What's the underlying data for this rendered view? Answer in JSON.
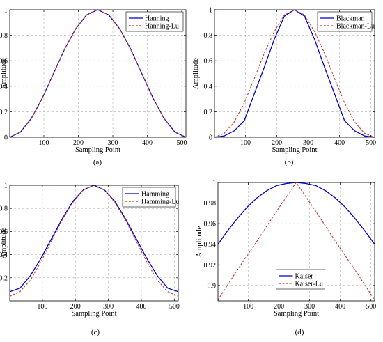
{
  "chart_data": [
    {
      "type": "line",
      "caption": "(a)",
      "xlabel": "Sampling Point",
      "ylabel": "Amplitude",
      "xlim": [
        1,
        512
      ],
      "ylim": [
        0,
        1
      ],
      "xticks": [
        100,
        200,
        300,
        400,
        500
      ],
      "yticks": [
        0,
        0.2,
        0.4,
        0.6,
        0.8,
        1
      ],
      "ytick_labels": [
        "0",
        "0.2",
        "0.4",
        "0.6",
        "0.8",
        "1"
      ],
      "grid": true,
      "legend": "top-right",
      "series": [
        {
          "name": "Hanning",
          "color": "#0000cc",
          "style": "solid",
          "x": [
            1,
            32,
            64,
            96,
            128,
            160,
            192,
            224,
            256,
            288,
            320,
            352,
            384,
            416,
            448,
            480,
            512
          ],
          "y": [
            0.0,
            0.04,
            0.15,
            0.31,
            0.5,
            0.69,
            0.85,
            0.96,
            1.0,
            0.96,
            0.85,
            0.69,
            0.5,
            0.31,
            0.15,
            0.04,
            0.0
          ]
        },
        {
          "name": "Hanning-Lu",
          "color": "#c0392b",
          "style": "dashed",
          "x": [
            1,
            32,
            64,
            96,
            128,
            160,
            192,
            224,
            256,
            288,
            320,
            352,
            384,
            416,
            448,
            480,
            512
          ],
          "y": [
            0.0,
            0.04,
            0.15,
            0.31,
            0.5,
            0.69,
            0.85,
            0.96,
            1.0,
            0.96,
            0.85,
            0.69,
            0.5,
            0.31,
            0.15,
            0.04,
            0.0
          ]
        }
      ]
    },
    {
      "type": "line",
      "caption": "(b)",
      "xlabel": "Sampling Point",
      "ylabel": "Amplitude",
      "xlim": [
        1,
        512
      ],
      "ylim": [
        0,
        1
      ],
      "xticks": [
        100,
        200,
        300,
        400,
        500
      ],
      "yticks": [
        0,
        0.2,
        0.4,
        0.6,
        0.8,
        1
      ],
      "ytick_labels": [
        "0",
        "0.2",
        "0.4",
        "0.6",
        "0.8",
        "1"
      ],
      "grid": true,
      "legend": "top-right",
      "series": [
        {
          "name": "Blackman",
          "color": "#0000cc",
          "style": "solid",
          "x": [
            1,
            32,
            64,
            96,
            128,
            160,
            192,
            224,
            256,
            288,
            320,
            352,
            384,
            416,
            448,
            480,
            512
          ],
          "y": [
            0.0,
            0.01,
            0.05,
            0.13,
            0.34,
            0.55,
            0.77,
            0.95,
            1.0,
            0.95,
            0.77,
            0.55,
            0.34,
            0.13,
            0.05,
            0.01,
            0.0
          ]
        },
        {
          "name": "Blackman-Lu",
          "color": "#c0392b",
          "style": "dashed",
          "x": [
            1,
            32,
            64,
            96,
            128,
            160,
            192,
            224,
            256,
            288,
            320,
            352,
            384,
            416,
            448,
            480,
            512
          ],
          "y": [
            0.0,
            0.03,
            0.12,
            0.27,
            0.46,
            0.66,
            0.83,
            0.96,
            1.0,
            0.96,
            0.83,
            0.66,
            0.46,
            0.27,
            0.12,
            0.03,
            0.0
          ]
        }
      ]
    },
    {
      "type": "line",
      "caption": "(c)",
      "xlabel": "Sampling Point",
      "ylabel": "Amplitude",
      "xlim": [
        1,
        512
      ],
      "ylim": [
        0,
        1
      ],
      "xticks": [
        100,
        200,
        300,
        400,
        500
      ],
      "yticks": [
        0.2,
        0.4,
        0.6,
        0.8,
        1
      ],
      "ytick_labels": [
        "0.2",
        "0.4",
        "0.6",
        "0.8",
        "1"
      ],
      "grid": true,
      "legend": "top-right",
      "series": [
        {
          "name": "Hamming",
          "color": "#0000cc",
          "style": "solid",
          "x": [
            1,
            32,
            64,
            96,
            128,
            160,
            192,
            224,
            256,
            288,
            320,
            352,
            384,
            416,
            448,
            480,
            512
          ],
          "y": [
            0.08,
            0.11,
            0.22,
            0.37,
            0.54,
            0.71,
            0.86,
            0.96,
            1.0,
            0.96,
            0.86,
            0.71,
            0.54,
            0.37,
            0.22,
            0.11,
            0.08
          ]
        },
        {
          "name": "Hamming-Lu",
          "color": "#c0392b",
          "style": "dashed",
          "x": [
            1,
            32,
            64,
            96,
            128,
            160,
            192,
            224,
            256,
            288,
            320,
            352,
            384,
            416,
            448,
            480,
            512
          ],
          "y": [
            0.04,
            0.08,
            0.18,
            0.34,
            0.52,
            0.7,
            0.85,
            0.96,
            1.0,
            0.96,
            0.85,
            0.7,
            0.52,
            0.34,
            0.18,
            0.08,
            0.04
          ]
        }
      ]
    },
    {
      "type": "line",
      "caption": "(d)",
      "xlabel": "Sampling Point",
      "ylabel": "Amplitude",
      "xlim": [
        1,
        512
      ],
      "ylim": [
        0.885,
        1
      ],
      "xticks": [
        100,
        200,
        300,
        400,
        500
      ],
      "yticks": [
        0.9,
        0.92,
        0.94,
        0.96,
        0.98,
        1
      ],
      "ytick_labels": [
        "0.9",
        "0.92",
        "0.94",
        "0.96",
        "0.98",
        "1"
      ],
      "grid": true,
      "legend": "bottom-center",
      "series": [
        {
          "name": "Kaiser",
          "color": "#0000cc",
          "style": "solid",
          "x": [
            1,
            32,
            64,
            96,
            128,
            160,
            192,
            224,
            256,
            288,
            320,
            352,
            384,
            416,
            448,
            480,
            512
          ],
          "y": [
            0.94,
            0.953,
            0.965,
            0.976,
            0.985,
            0.992,
            0.997,
            0.999,
            1.0,
            0.999,
            0.997,
            0.992,
            0.985,
            0.976,
            0.965,
            0.953,
            0.94
          ]
        },
        {
          "name": "Kaiser-Lu",
          "color": "#c0392b",
          "style": "dashed",
          "x": [
            1,
            64,
            128,
            192,
            256,
            320,
            384,
            448,
            512
          ],
          "y": [
            0.886,
            0.915,
            0.943,
            0.972,
            1.0,
            0.972,
            0.943,
            0.915,
            0.886
          ]
        }
      ]
    }
  ]
}
